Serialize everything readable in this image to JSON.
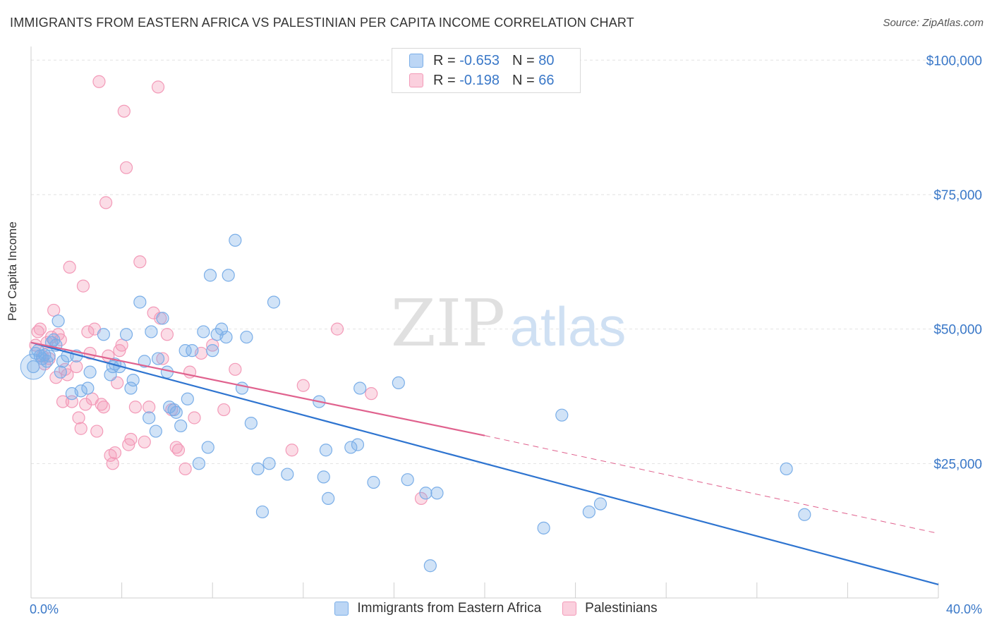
{
  "title": "IMMIGRANTS FROM EASTERN AFRICA VS PALESTINIAN PER CAPITA INCOME CORRELATION CHART",
  "source": "Source: ZipAtlas.com",
  "watermark": {
    "zip": "ZIP",
    "atlas": "atlas"
  },
  "legend": {
    "rows": [
      {
        "r_label": "R =",
        "r_value": "-0.653",
        "n_label": "N =",
        "n_value": "80",
        "color": "#7aaee8"
      },
      {
        "r_label": "R =",
        "r_value": "-0.198",
        "n_label": "N =",
        "n_value": "66",
        "color": "#f39ab8"
      }
    ]
  },
  "bottom_legend": [
    "Immigrants from Eastern Africa",
    "Palestinians"
  ],
  "chart_data": {
    "type": "scatter",
    "title": "IMMIGRANTS FROM EASTERN AFRICA VS PALESTINIAN PER CAPITA INCOME CORRELATION CHART",
    "xlabel": "",
    "ylabel": "Per Capita Income",
    "xlim": [
      0,
      40
    ],
    "ylim": [
      0,
      102000
    ],
    "x_tick_labels": {
      "0": "0.0%",
      "40": "40.0%"
    },
    "y_ticks": [
      25000,
      50000,
      75000,
      100000
    ],
    "y_tick_labels": [
      "$25,000",
      "$50,000",
      "$75,000",
      "$100,000"
    ],
    "grid": true,
    "legend_placement": "bottom",
    "series": [
      {
        "name": "Immigrants from Eastern Africa",
        "color": "#7aaee8",
        "line_color": "#2e74d0",
        "trend": {
          "x": [
            0,
            40
          ],
          "y": [
            47500,
            2500
          ]
        },
        "points": [
          [
            0.1,
            43000
          ],
          [
            0.2,
            45500
          ],
          [
            0.3,
            46000
          ],
          [
            0.4,
            45000
          ],
          [
            0.5,
            44500
          ],
          [
            0.6,
            45200
          ],
          [
            0.7,
            44000
          ],
          [
            0.8,
            45000
          ],
          [
            0.9,
            47500
          ],
          [
            1.0,
            48000
          ],
          [
            1.1,
            47000
          ],
          [
            1.2,
            51500
          ],
          [
            1.3,
            42000
          ],
          [
            1.4,
            44000
          ],
          [
            1.6,
            45000
          ],
          [
            1.8,
            38000
          ],
          [
            2.0,
            45000
          ],
          [
            2.2,
            38500
          ],
          [
            2.5,
            39000
          ],
          [
            2.6,
            42000
          ],
          [
            3.2,
            49000
          ],
          [
            3.5,
            41500
          ],
          [
            3.6,
            43000
          ],
          [
            3.7,
            43500
          ],
          [
            3.9,
            43000
          ],
          [
            4.2,
            49000
          ],
          [
            4.4,
            39000
          ],
          [
            4.5,
            40500
          ],
          [
            4.8,
            55000
          ],
          [
            5.0,
            44000
          ],
          [
            5.2,
            33500
          ],
          [
            5.3,
            49500
          ],
          [
            5.5,
            31000
          ],
          [
            5.6,
            44500
          ],
          [
            5.8,
            52000
          ],
          [
            6.0,
            42000
          ],
          [
            6.1,
            35500
          ],
          [
            6.3,
            35000
          ],
          [
            6.4,
            34500
          ],
          [
            6.6,
            32000
          ],
          [
            6.8,
            46000
          ],
          [
            6.9,
            37000
          ],
          [
            7.1,
            46000
          ],
          [
            7.4,
            25000
          ],
          [
            7.6,
            49500
          ],
          [
            7.8,
            28000
          ],
          [
            7.9,
            60000
          ],
          [
            8.0,
            46000
          ],
          [
            8.2,
            49000
          ],
          [
            8.4,
            50000
          ],
          [
            8.6,
            48500
          ],
          [
            8.7,
            60000
          ],
          [
            9.0,
            66500
          ],
          [
            9.3,
            39000
          ],
          [
            9.5,
            48500
          ],
          [
            9.7,
            32500
          ],
          [
            10.0,
            24000
          ],
          [
            10.2,
            16000
          ],
          [
            10.5,
            25000
          ],
          [
            10.7,
            55000
          ],
          [
            11.3,
            23000
          ],
          [
            12.7,
            36500
          ],
          [
            12.9,
            22500
          ],
          [
            13.0,
            27500
          ],
          [
            13.1,
            18500
          ],
          [
            14.1,
            28000
          ],
          [
            14.4,
            28500
          ],
          [
            14.5,
            39000
          ],
          [
            15.1,
            21500
          ],
          [
            16.2,
            40000
          ],
          [
            16.6,
            22000
          ],
          [
            17.4,
            19500
          ],
          [
            17.6,
            6000
          ],
          [
            17.9,
            19500
          ],
          [
            22.6,
            13000
          ],
          [
            23.4,
            34000
          ],
          [
            24.6,
            16000
          ],
          [
            25.1,
            17500
          ],
          [
            33.3,
            24000
          ],
          [
            34.1,
            15500
          ]
        ]
      },
      {
        "name": "Palestinians",
        "color": "#f39ab8",
        "line_color": "#e0628e",
        "trend": {
          "x": [
            0,
            20,
            40
          ],
          "y": [
            47500,
            30200,
            12000
          ],
          "solid_until": 20
        },
        "points": [
          [
            0.2,
            47000
          ],
          [
            0.3,
            49500
          ],
          [
            0.4,
            50000
          ],
          [
            0.5,
            45000
          ],
          [
            0.6,
            43500
          ],
          [
            0.7,
            47500
          ],
          [
            0.8,
            44500
          ],
          [
            0.9,
            48500
          ],
          [
            1.0,
            53500
          ],
          [
            1.1,
            41000
          ],
          [
            1.2,
            49000
          ],
          [
            1.3,
            48000
          ],
          [
            1.4,
            36500
          ],
          [
            1.5,
            42500
          ],
          [
            1.6,
            41500
          ],
          [
            1.7,
            61500
          ],
          [
            1.8,
            36500
          ],
          [
            2.0,
            43000
          ],
          [
            2.1,
            33500
          ],
          [
            2.2,
            31500
          ],
          [
            2.3,
            58000
          ],
          [
            2.4,
            36000
          ],
          [
            2.5,
            49500
          ],
          [
            2.6,
            45500
          ],
          [
            2.7,
            37000
          ],
          [
            2.8,
            50000
          ],
          [
            2.9,
            31000
          ],
          [
            3.0,
            96000
          ],
          [
            3.1,
            36000
          ],
          [
            3.2,
            35500
          ],
          [
            3.3,
            73500
          ],
          [
            3.4,
            45000
          ],
          [
            3.5,
            26500
          ],
          [
            3.6,
            25000
          ],
          [
            3.7,
            27000
          ],
          [
            3.8,
            40000
          ],
          [
            3.9,
            46000
          ],
          [
            4.0,
            47000
          ],
          [
            4.1,
            90500
          ],
          [
            4.2,
            80000
          ],
          [
            4.3,
            28500
          ],
          [
            4.4,
            29500
          ],
          [
            4.6,
            35500
          ],
          [
            4.8,
            62500
          ],
          [
            5.0,
            29000
          ],
          [
            5.2,
            35500
          ],
          [
            5.4,
            53000
          ],
          [
            5.6,
            95000
          ],
          [
            5.7,
            52000
          ],
          [
            5.8,
            44500
          ],
          [
            6.0,
            49000
          ],
          [
            6.2,
            35000
          ],
          [
            6.4,
            28000
          ],
          [
            6.5,
            27500
          ],
          [
            6.8,
            24000
          ],
          [
            7.0,
            42000
          ],
          [
            7.2,
            33500
          ],
          [
            7.5,
            45500
          ],
          [
            8.0,
            47000
          ],
          [
            8.5,
            35000
          ],
          [
            9.0,
            42500
          ],
          [
            11.5,
            27500
          ],
          [
            12.0,
            39500
          ],
          [
            13.5,
            50000
          ],
          [
            15.0,
            38000
          ],
          [
            17.2,
            18500
          ]
        ]
      }
    ]
  }
}
